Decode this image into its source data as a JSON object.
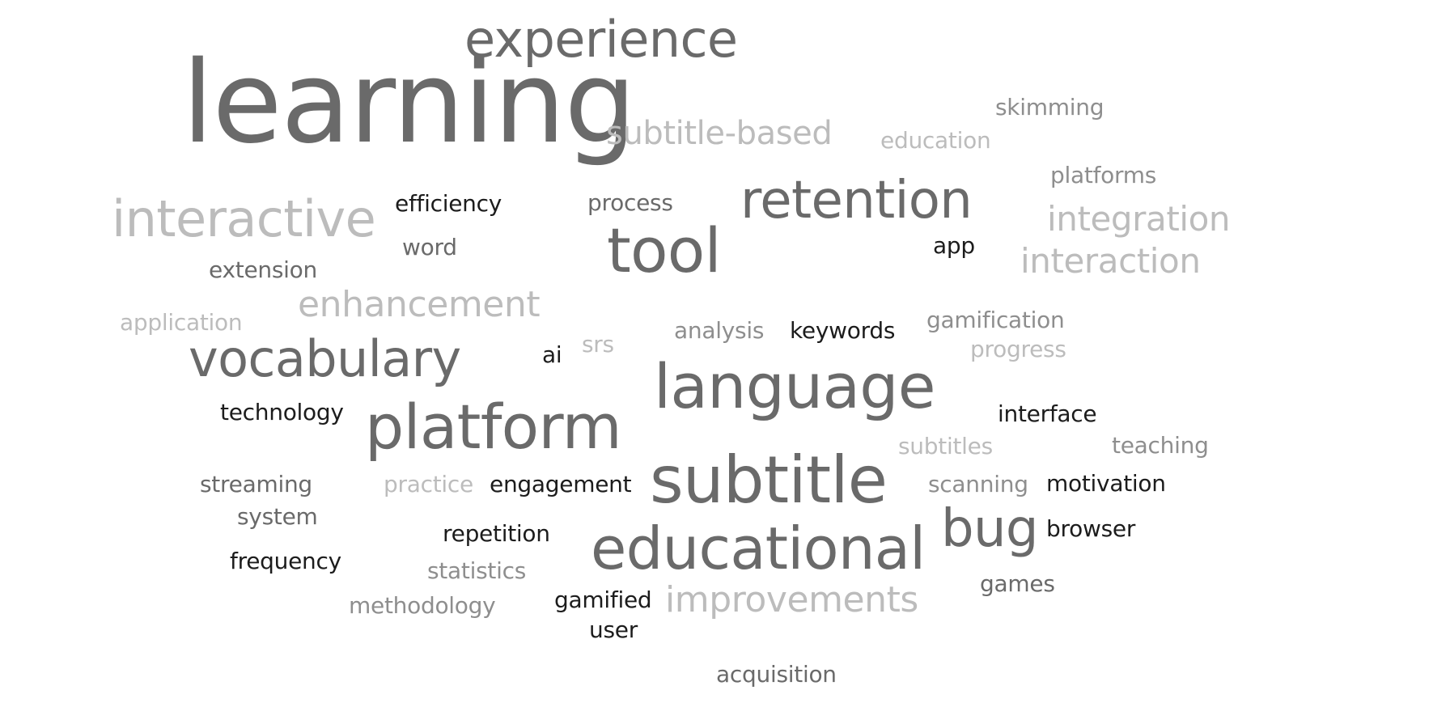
{
  "words": {
    "learning": "learning",
    "experience": "experience",
    "subtitle_based": "subtitle-based",
    "skimming": "skimming",
    "education": "education",
    "platforms": "platforms",
    "interactive": "interactive",
    "efficiency": "efficiency",
    "process": "process",
    "retention": "retention",
    "integration": "integration",
    "word": "word",
    "tool": "tool",
    "app": "app",
    "interaction": "interaction",
    "extension": "extension",
    "enhancement": "enhancement",
    "application": "application",
    "vocabulary": "vocabulary",
    "ai": "ai",
    "srs": "srs",
    "analysis": "analysis",
    "keywords": "keywords",
    "gamification": "gamification",
    "progress": "progress",
    "language": "language",
    "technology": "technology",
    "platform": "platform",
    "interface": "interface",
    "subtitles": "subtitles",
    "teaching": "teaching",
    "streaming": "streaming",
    "practice": "practice",
    "engagement": "engagement",
    "subtitle": "subtitle",
    "scanning": "scanning",
    "motivation": "motivation",
    "system": "system",
    "repetition": "repetition",
    "bug": "bug",
    "browser": "browser",
    "frequency": "frequency",
    "educational": "educational",
    "statistics": "statistics",
    "games": "games",
    "methodology": "methodology",
    "gamified": "gamified",
    "improvements": "improvements",
    "user": "user",
    "acquisition": "acquisition"
  },
  "colors": {
    "dark": "#1c1c1c",
    "mid": "#6a6a6a",
    "medium": "#8e8e8e",
    "light": "#bcbcbc",
    "background": "#ffffff"
  }
}
